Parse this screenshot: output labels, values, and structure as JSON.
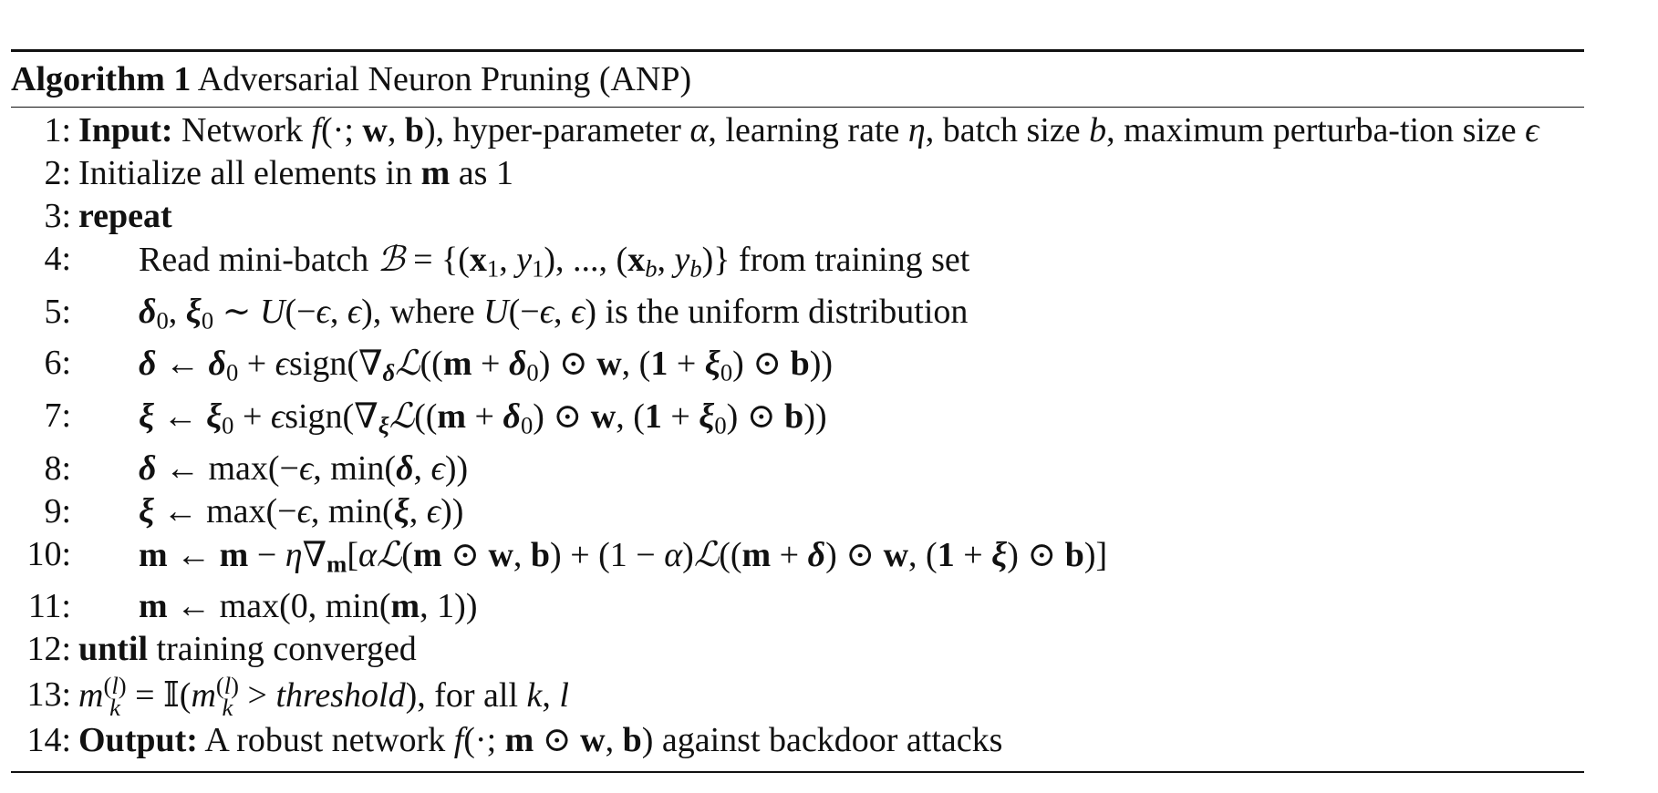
{
  "algorithm": {
    "label": "Algorithm 1",
    "title": "Adversarial Neuron Pruning (ANP)"
  },
  "lines": [
    {
      "num": "1:",
      "keyword": "Input:",
      "text": "Network f(·; w, b), hyper-parameter α, learning rate η, batch size b, maximum perturbation size ϵ"
    },
    {
      "num": "2:",
      "text": "Initialize all elements in m as 1"
    },
    {
      "num": "3:",
      "keyword": "repeat"
    },
    {
      "num": "4:",
      "text": "Read mini-batch ℬ = {(x1, y1), ..., (xb, yb)} from training set"
    },
    {
      "num": "5:",
      "text": "δ0, ξ0 ∼ U(−ϵ, ϵ), where U(−ϵ, ϵ) is the uniform distribution"
    },
    {
      "num": "6:",
      "text": "δ ← δ0 + ϵsign(∇δℒ((m + δ0) ⊙ w, (1 + ξ0) ⊙ b))"
    },
    {
      "num": "7:",
      "text": "ξ ← ξ0 + ϵsign(∇ξℒ((m + δ0) ⊙ w, (1 + ξ0) ⊙ b))"
    },
    {
      "num": "8:",
      "text": "δ ← max(−ϵ, min(δ, ϵ))"
    },
    {
      "num": "9:",
      "text": "ξ ← max(−ϵ, min(ξ, ϵ))"
    },
    {
      "num": "10:",
      "text": "m ← m − η∇m[αℒ(m ⊙ w, b) + (1 − α)ℒ((m + δ) ⊙ w, (1 + ξ) ⊙ b)]"
    },
    {
      "num": "11:",
      "text": "m ← max(0, min(m, 1))"
    },
    {
      "num": "12:",
      "keyword": "until",
      "text": "training converged"
    },
    {
      "num": "13:",
      "text": "mk(l) = 𝕀(mk(l) > threshold), for all k, l"
    },
    {
      "num": "14:",
      "keyword": "Output:",
      "text": "A robust network f(·; m ⊙ w, b) against backdoor attacks"
    }
  ]
}
